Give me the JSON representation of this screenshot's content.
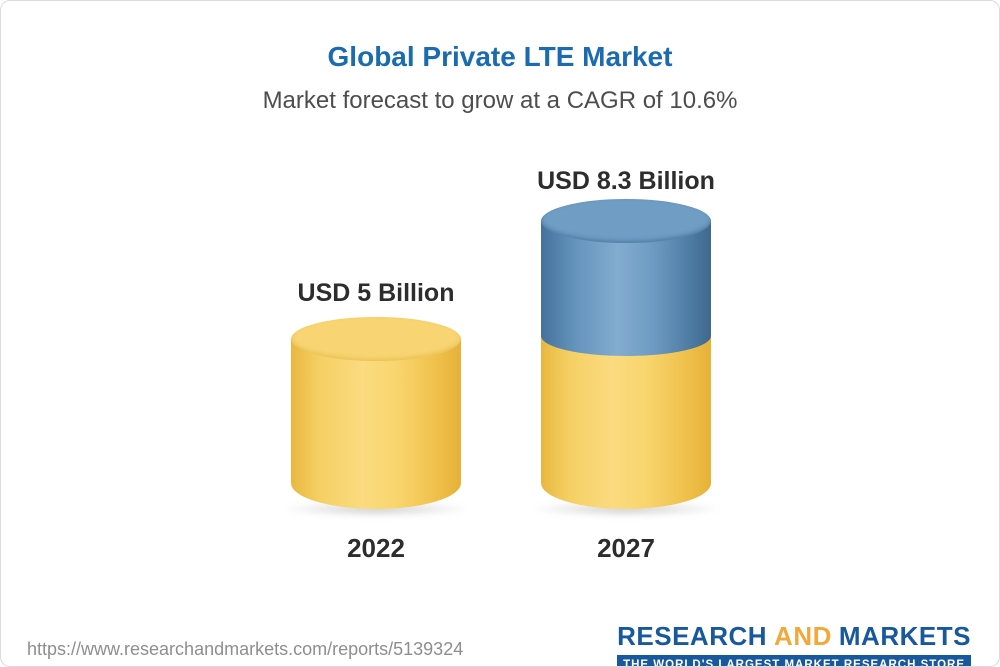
{
  "chart_data": {
    "type": "bar",
    "style": "3d-cylinder",
    "title": "Global Private LTE Market",
    "subtitle": "Market forecast to grow at a CAGR of 10.6%",
    "cagr_percent": 10.6,
    "unit": "USD Billion",
    "categories": [
      "2022",
      "2027"
    ],
    "values": [
      5,
      8.3
    ],
    "value_labels": [
      "USD 5 Billion",
      "USD 8.3 Billion"
    ],
    "segments_2027": {
      "base_value": 5,
      "growth_value": 3.3
    },
    "grid": false,
    "legend": "none",
    "colors": {
      "base_segment": "#f6cf66",
      "growth_segment": "#5e8fb9",
      "title": "#1a6bb0",
      "text": "#2d2d2d"
    }
  },
  "footer": {
    "url": "https://www.researchandmarkets.com/reports/5139324",
    "logo": {
      "word1": "RESEARCH",
      "word2": "AND",
      "word3": "MARKETS",
      "tagline": "THE WORLD'S LARGEST MARKET RESEARCH STORE",
      "brand_blue": "#17599c",
      "brand_gold": "#f2a93b"
    }
  }
}
